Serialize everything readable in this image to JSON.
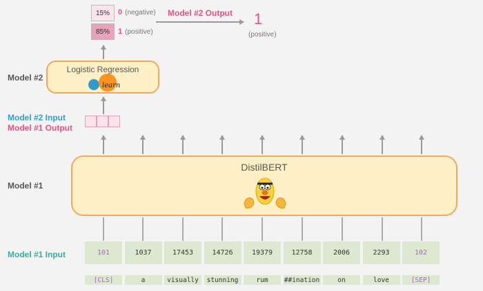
{
  "side_labels": {
    "model2": "Model #2",
    "model2_input": "Model #2 Input",
    "model1_output": "Model #1 Output",
    "model1": "Model #1",
    "model1_input": "Model #1 Input"
  },
  "output": {
    "neg_pct": "15%",
    "neg_class": "0",
    "neg_label": "(negative)",
    "pos_pct": "85%",
    "pos_class": "1",
    "pos_label": "(positive)",
    "arrow_label": "Model #2 Output",
    "result_value": "1",
    "result_label": "(positive)"
  },
  "model2": {
    "title": "Logistic Regression",
    "logo_text": "learn"
  },
  "model1": {
    "title": "DistilBERT"
  },
  "tokens": {
    "ids": [
      "101",
      "1037",
      "17453",
      "14726",
      "19379",
      "12758",
      "2006",
      "2293",
      "102"
    ],
    "words": [
      "[CLS]",
      "a",
      "visually",
      "stunning",
      "rum",
      "##ination",
      "on",
      "love",
      "[SEP]"
    ]
  },
  "colors": {
    "accent_pink": "#e0527f",
    "accent_blue": "#2e9fd0",
    "accent_teal": "#3aab9e",
    "box_fill": "#fdf0c6",
    "box_border": "#f1a85c",
    "token_fill": "#dce8cf"
  }
}
